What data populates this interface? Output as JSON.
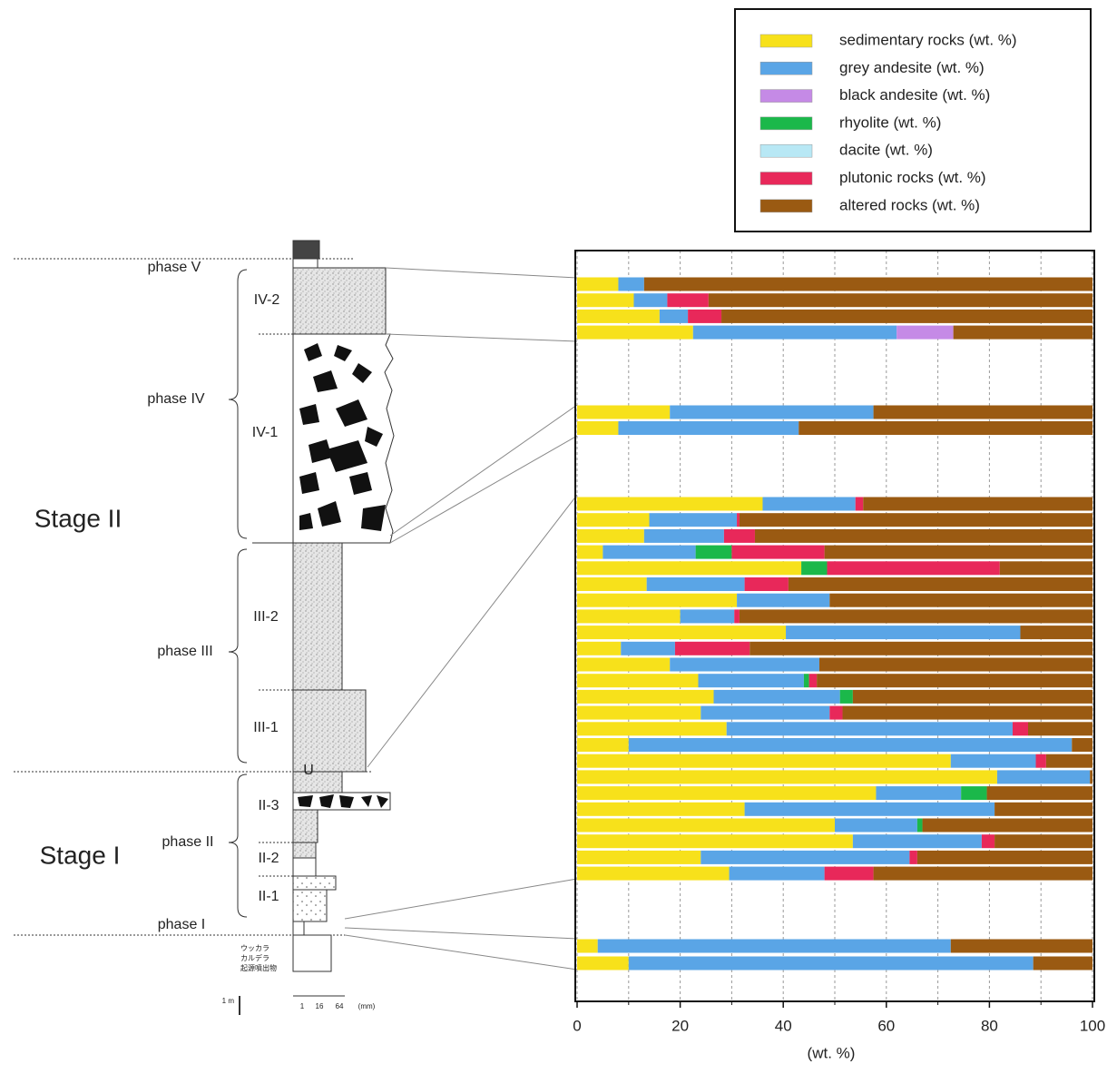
{
  "chart_data": {
    "type": "stacked-barh",
    "categories": [
      null,
      null,
      null,
      null,
      null,
      null,
      null,
      null,
      null,
      null,
      null,
      null,
      null,
      null,
      null,
      null,
      null,
      null,
      null,
      null,
      null,
      null,
      null,
      null,
      null,
      null,
      null,
      null,
      null,
      null,
      null,
      null
    ],
    "series": [
      {
        "name": "sedimentary rocks  (wt. %)",
        "color": "#f7e11b",
        "values": [
          8,
          11,
          16,
          22.5,
          18,
          8,
          36,
          14,
          13,
          5,
          43.5,
          13.5,
          31,
          20,
          40.5,
          8.5,
          18,
          23.5,
          26.5,
          24,
          29,
          10,
          72.5,
          81.5,
          58,
          32.5,
          50,
          53.5,
          24,
          29.5,
          4,
          10
        ]
      },
      {
        "name": "grey andesite (wt. %)",
        "color": "#5aa5e6",
        "values": [
          5,
          6.5,
          5.5,
          39.5,
          39.5,
          35,
          18,
          17,
          15.5,
          18,
          0,
          19,
          18,
          10.5,
          45.5,
          10.5,
          29,
          20.5,
          24.5,
          25,
          55.5,
          86,
          16.5,
          18,
          16.5,
          48.5,
          16,
          25,
          40.5,
          18.5,
          68.5,
          78.5
        ]
      },
      {
        "name": "black andesite (wt. %)",
        "color": "#c58ae6",
        "values": [
          0,
          0,
          0,
          11,
          0,
          0,
          0,
          0,
          0,
          0,
          0,
          0,
          0,
          0,
          0,
          0,
          0,
          0,
          0,
          0,
          0,
          0,
          0,
          0,
          0,
          0,
          0,
          0,
          0,
          0,
          0,
          0
        ]
      },
      {
        "name": "rhyolite (wt. %)",
        "color": "#1bb84a",
        "values": [
          0,
          0,
          0,
          0,
          0,
          0,
          0,
          0,
          0,
          7,
          5,
          0,
          0,
          0,
          0,
          0,
          0,
          1,
          2.5,
          0,
          0,
          0,
          0,
          0,
          5,
          0,
          1,
          0,
          0,
          0,
          0,
          0
        ]
      },
      {
        "name": "dacite (wt. %)",
        "color": "#b8e8f5",
        "values": [
          0,
          0,
          0,
          0,
          0,
          0,
          0,
          0,
          0,
          0,
          0,
          0,
          0,
          0,
          0,
          0,
          0,
          0,
          0,
          0,
          0,
          0,
          0,
          0,
          0,
          0,
          0,
          0,
          0,
          0,
          0,
          0
        ]
      },
      {
        "name": "plutonic rocks (wt. %)",
        "color": "#e8285a",
        "values": [
          0,
          8,
          6.5,
          0,
          0,
          0,
          1.5,
          0.5,
          6,
          18,
          33.5,
          8.5,
          0,
          1,
          0,
          14.5,
          0,
          1.5,
          0,
          2.5,
          3,
          0,
          2,
          0,
          0,
          0,
          0,
          2.5,
          1.5,
          9.5,
          0,
          0
        ]
      },
      {
        "name": "altered rocks (wt. %)",
        "color": "#9a5a12",
        "values": [
          87,
          74.5,
          72,
          27,
          42.5,
          57,
          44.5,
          68.5,
          65.5,
          52,
          18,
          59,
          51,
          68.5,
          14,
          66.5,
          53,
          53.5,
          46.5,
          48.5,
          12.5,
          4,
          9,
          0.5,
          20.5,
          19,
          33,
          19,
          34,
          42.5,
          27.5,
          11.5
        ]
      }
    ],
    "xlabel": "(wt. %)",
    "xlim": [
      0,
      100
    ],
    "xticks": [
      0,
      20,
      40,
      60,
      80,
      100
    ],
    "xminorticks": [
      10,
      30,
      50,
      70,
      90
    ],
    "grid": true,
    "legend": "top-right"
  },
  "column": {
    "phases": [
      "phase V",
      "phase IV",
      "phase III",
      "phase II",
      "phase I"
    ],
    "units": [
      "IV-2",
      "IV-1",
      "III-2",
      "III-1",
      "II-3",
      "II-2",
      "II-1",
      "U"
    ],
    "stages": [
      "Stage II",
      "Stage I"
    ],
    "note": [
      "ウッカラ",
      "カルデラ",
      "起源噴出物"
    ],
    "scale": [
      "1 m",
      "1",
      "16",
      "64",
      "(mm)"
    ]
  }
}
